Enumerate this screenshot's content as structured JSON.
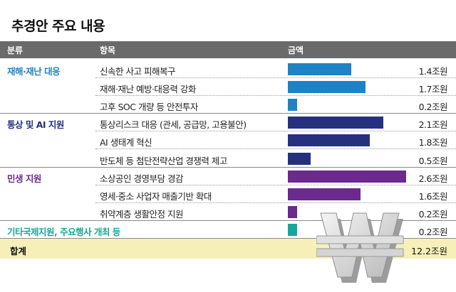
{
  "title": "추경안 주요 내용",
  "headers": {
    "category": "분류",
    "item": "항목",
    "amount": "금액"
  },
  "colors": {
    "disaster": "#1e83c5",
    "trade": "#27307f",
    "livelihood": "#6a2a8e",
    "other": "#17a79a",
    "total_bg": "#f6f0b8",
    "header_bg": "#6a6a6a"
  },
  "chart_data": {
    "type": "bar",
    "unit": "조원",
    "categories": [
      "신속한 사고 피해복구",
      "재해·재난 예방·대응력 강화",
      "고후 SOC 개량 등 안전투자",
      "통상리스크 대응 (관세, 공급망, 고용불안)",
      "AI 생태계 혁신",
      "반도체 등 첨단전략산업 경쟁력 제고",
      "소상공인 경영부담 경감",
      "영세·중소 사업자 매출기반 확대",
      "취약계층 생활안정 지원",
      ""
    ],
    "values": [
      1.4,
      1.7,
      0.2,
      2.1,
      1.8,
      0.5,
      2.6,
      1.6,
      0.2,
      0.2
    ],
    "total": 12.2,
    "groups": [
      {
        "name": "재해·재난 대응",
        "color": "#1e83c5",
        "rows": [
          0,
          1,
          2
        ]
      },
      {
        "name": "통상 및 AI 지원",
        "color": "#27307f",
        "rows": [
          3,
          4,
          5
        ]
      },
      {
        "name": "민생 지원",
        "color": "#6a2a8e",
        "rows": [
          6,
          7,
          8
        ]
      },
      {
        "name": "기타국제지원, 주요행사 개최 등",
        "color": "#17a79a",
        "rows": [
          9
        ]
      }
    ]
  },
  "rows": [
    {
      "category": "재해·재난 대응",
      "item": "신속한 사고 피해복구",
      "value": "1.4조원"
    },
    {
      "category": "",
      "item": "재해·재난 예방·대응력 강화",
      "value": "1.7조원"
    },
    {
      "category": "",
      "item": "고후 SOC 개량 등 안전투자",
      "value": "0.2조원"
    },
    {
      "category": "통상 및 AI 지원",
      "item": "통상리스크 대응 (관세, 공급망, 고용불안)",
      "value": "2.1조원"
    },
    {
      "category": "",
      "item": "AI 생태계 혁신",
      "value": "1.8조원"
    },
    {
      "category": "",
      "item": "반도체 등 첨단전략산업 경쟁력 제고",
      "value": "0.5조원"
    },
    {
      "category": "민생 지원",
      "item": "소상공인 경영부담 경감",
      "value": "2.6조원"
    },
    {
      "category": "",
      "item": "영세·중소 사업자 매출기반 확대",
      "value": "1.6조원"
    },
    {
      "category": "",
      "item": "취약계층 생활안정 지원",
      "value": "0.2조원"
    },
    {
      "category": "기타국제지원, 주요행사 개최 등",
      "item": "",
      "value": "0.2조원"
    }
  ],
  "total": {
    "label": "합계",
    "value": "12.2조원"
  },
  "decoration": {
    "icon": "won-sign-icon"
  }
}
